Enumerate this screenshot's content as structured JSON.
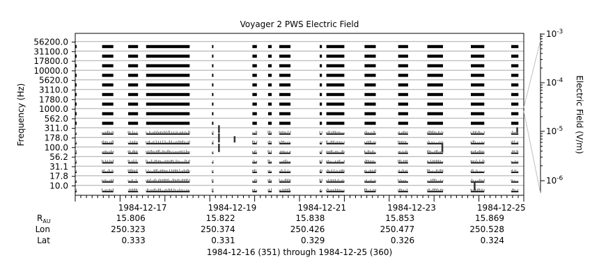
{
  "chart_data": {
    "type": "line",
    "title": "Voyager 2 PWS Electric Field",
    "ylabel": "Frequency (Hz)",
    "y2label": "Electric Field (V/m)",
    "footer": "1984-12-16 (351) through 1984-12-25 (360)",
    "frequency_channels": [
      "10.0",
      "17.8",
      "31.1",
      "56.2",
      "100.0",
      "178.0",
      "311.0",
      "562.0",
      "1000.0",
      "1780.0",
      "3110.0",
      "5620.0",
      "10000.0",
      "17800.0",
      "31100.0",
      "56200.0"
    ],
    "scale": "log",
    "scale_ticks": [
      {
        "base": "10",
        "exp": "-3",
        "value": 0.001
      },
      {
        "base": "10",
        "exp": "-4",
        "value": 0.0001
      },
      {
        "base": "10",
        "exp": "-5",
        "value": 1e-05
      },
      {
        "base": "10",
        "exp": "-6",
        "value": 1e-06
      }
    ],
    "x_range": [
      "1984-12-16",
      "1984-12-26"
    ],
    "x_ticks": [
      "1984-12-17",
      "1984-12-19",
      "1984-12-21",
      "1984-12-23",
      "1984-12-25"
    ],
    "ephemeris_labels": {
      "r": "R",
      "r_sub": "AU",
      "lon": "Lon",
      "lat": "Lat"
    },
    "ephemeris": [
      {
        "r": "15.806",
        "lon": "250.323",
        "lat": "0.333"
      },
      {
        "r": "15.822",
        "lon": "250.374",
        "lat": "0.331"
      },
      {
        "r": "15.838",
        "lon": "250.426",
        "lat": "0.329"
      },
      {
        "r": "15.853",
        "lon": "250.477",
        "lat": "0.326"
      },
      {
        "r": "15.869",
        "lon": "250.528",
        "lat": "0.324"
      }
    ],
    "data_segments_days": [
      [
        0.0,
        0.03
      ],
      [
        0.6,
        0.85
      ],
      [
        1.18,
        1.4
      ],
      [
        1.58,
        2.55
      ],
      [
        3.05,
        3.07
      ],
      [
        3.95,
        4.05
      ],
      [
        4.3,
        4.38
      ],
      [
        4.55,
        4.8
      ],
      [
        5.45,
        5.5
      ],
      [
        5.6,
        6.0
      ],
      [
        6.45,
        6.7
      ],
      [
        7.2,
        7.42
      ],
      [
        7.85,
        8.2
      ],
      [
        8.82,
        9.12
      ],
      [
        9.72,
        9.88
      ]
    ],
    "bursts": [
      {
        "channel": "100.0",
        "day": 3.2,
        "level": 0.9
      },
      {
        "channel": "178.0",
        "day": 3.2,
        "level": 1.0
      },
      {
        "channel": "311.0",
        "day": 3.2,
        "level": 0.8
      },
      {
        "channel": "178.0",
        "day": 3.55,
        "level": 0.6
      },
      {
        "channel": "100.0",
        "day": 8.18,
        "level": 1.0
      },
      {
        "channel": "10.0",
        "day": 8.9,
        "level": 0.9
      },
      {
        "channel": "311.0",
        "day": 9.85,
        "level": 0.5
      }
    ]
  }
}
